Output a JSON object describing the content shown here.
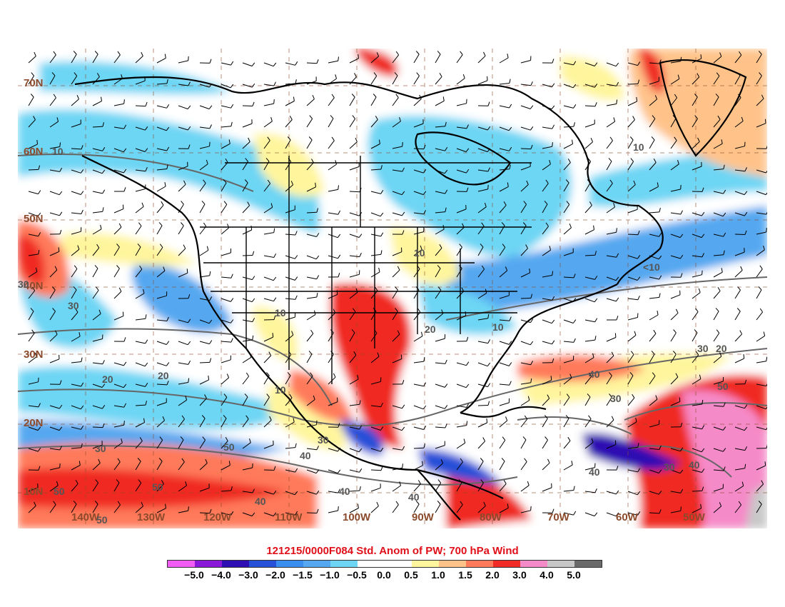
{
  "title": "121215/0000F084 Std. Anom of PW; 700 hPa Wind",
  "lat_labels": [
    "70N",
    "60N",
    "50N",
    "40N",
    "30N",
    "20N",
    "10N"
  ],
  "lon_labels": [
    "130W",
    "120W",
    "110W",
    "100W",
    "90W",
    "80W",
    "70W",
    "60W",
    "50W",
    "140W"
  ],
  "contour_labels": [
    "10",
    "10",
    "10",
    "10",
    "10",
    "10",
    "<10",
    "20",
    "20",
    "20",
    "20",
    "30",
    "30",
    "30",
    "30",
    "30",
    "30",
    "40",
    "40",
    "40",
    "40",
    "40",
    "40",
    "50",
    "50",
    "50",
    "50",
    "50",
    "30",
    "40"
  ],
  "colorbar": {
    "colors": [
      "#f15cf5",
      "#8a18d8",
      "#2e0fb3",
      "#2750d8",
      "#3a8ef0",
      "#55a8f0",
      "#6dd6f4",
      "#ffffff",
      "#ffffff",
      "#fff59d",
      "#ffc38a",
      "#ff7a5a",
      "#f02a24",
      "#f58ac8",
      "#c8c8c8",
      "#6a6a6a"
    ],
    "labels": [
      "−5.0",
      "−4.0",
      "−3.0",
      "−2.0",
      "−1.5",
      "−1.0",
      "−0.5",
      "0.0",
      "0.5",
      "1.0",
      "1.5",
      "2.0",
      "3.0",
      "4.0",
      "5.0"
    ]
  }
}
